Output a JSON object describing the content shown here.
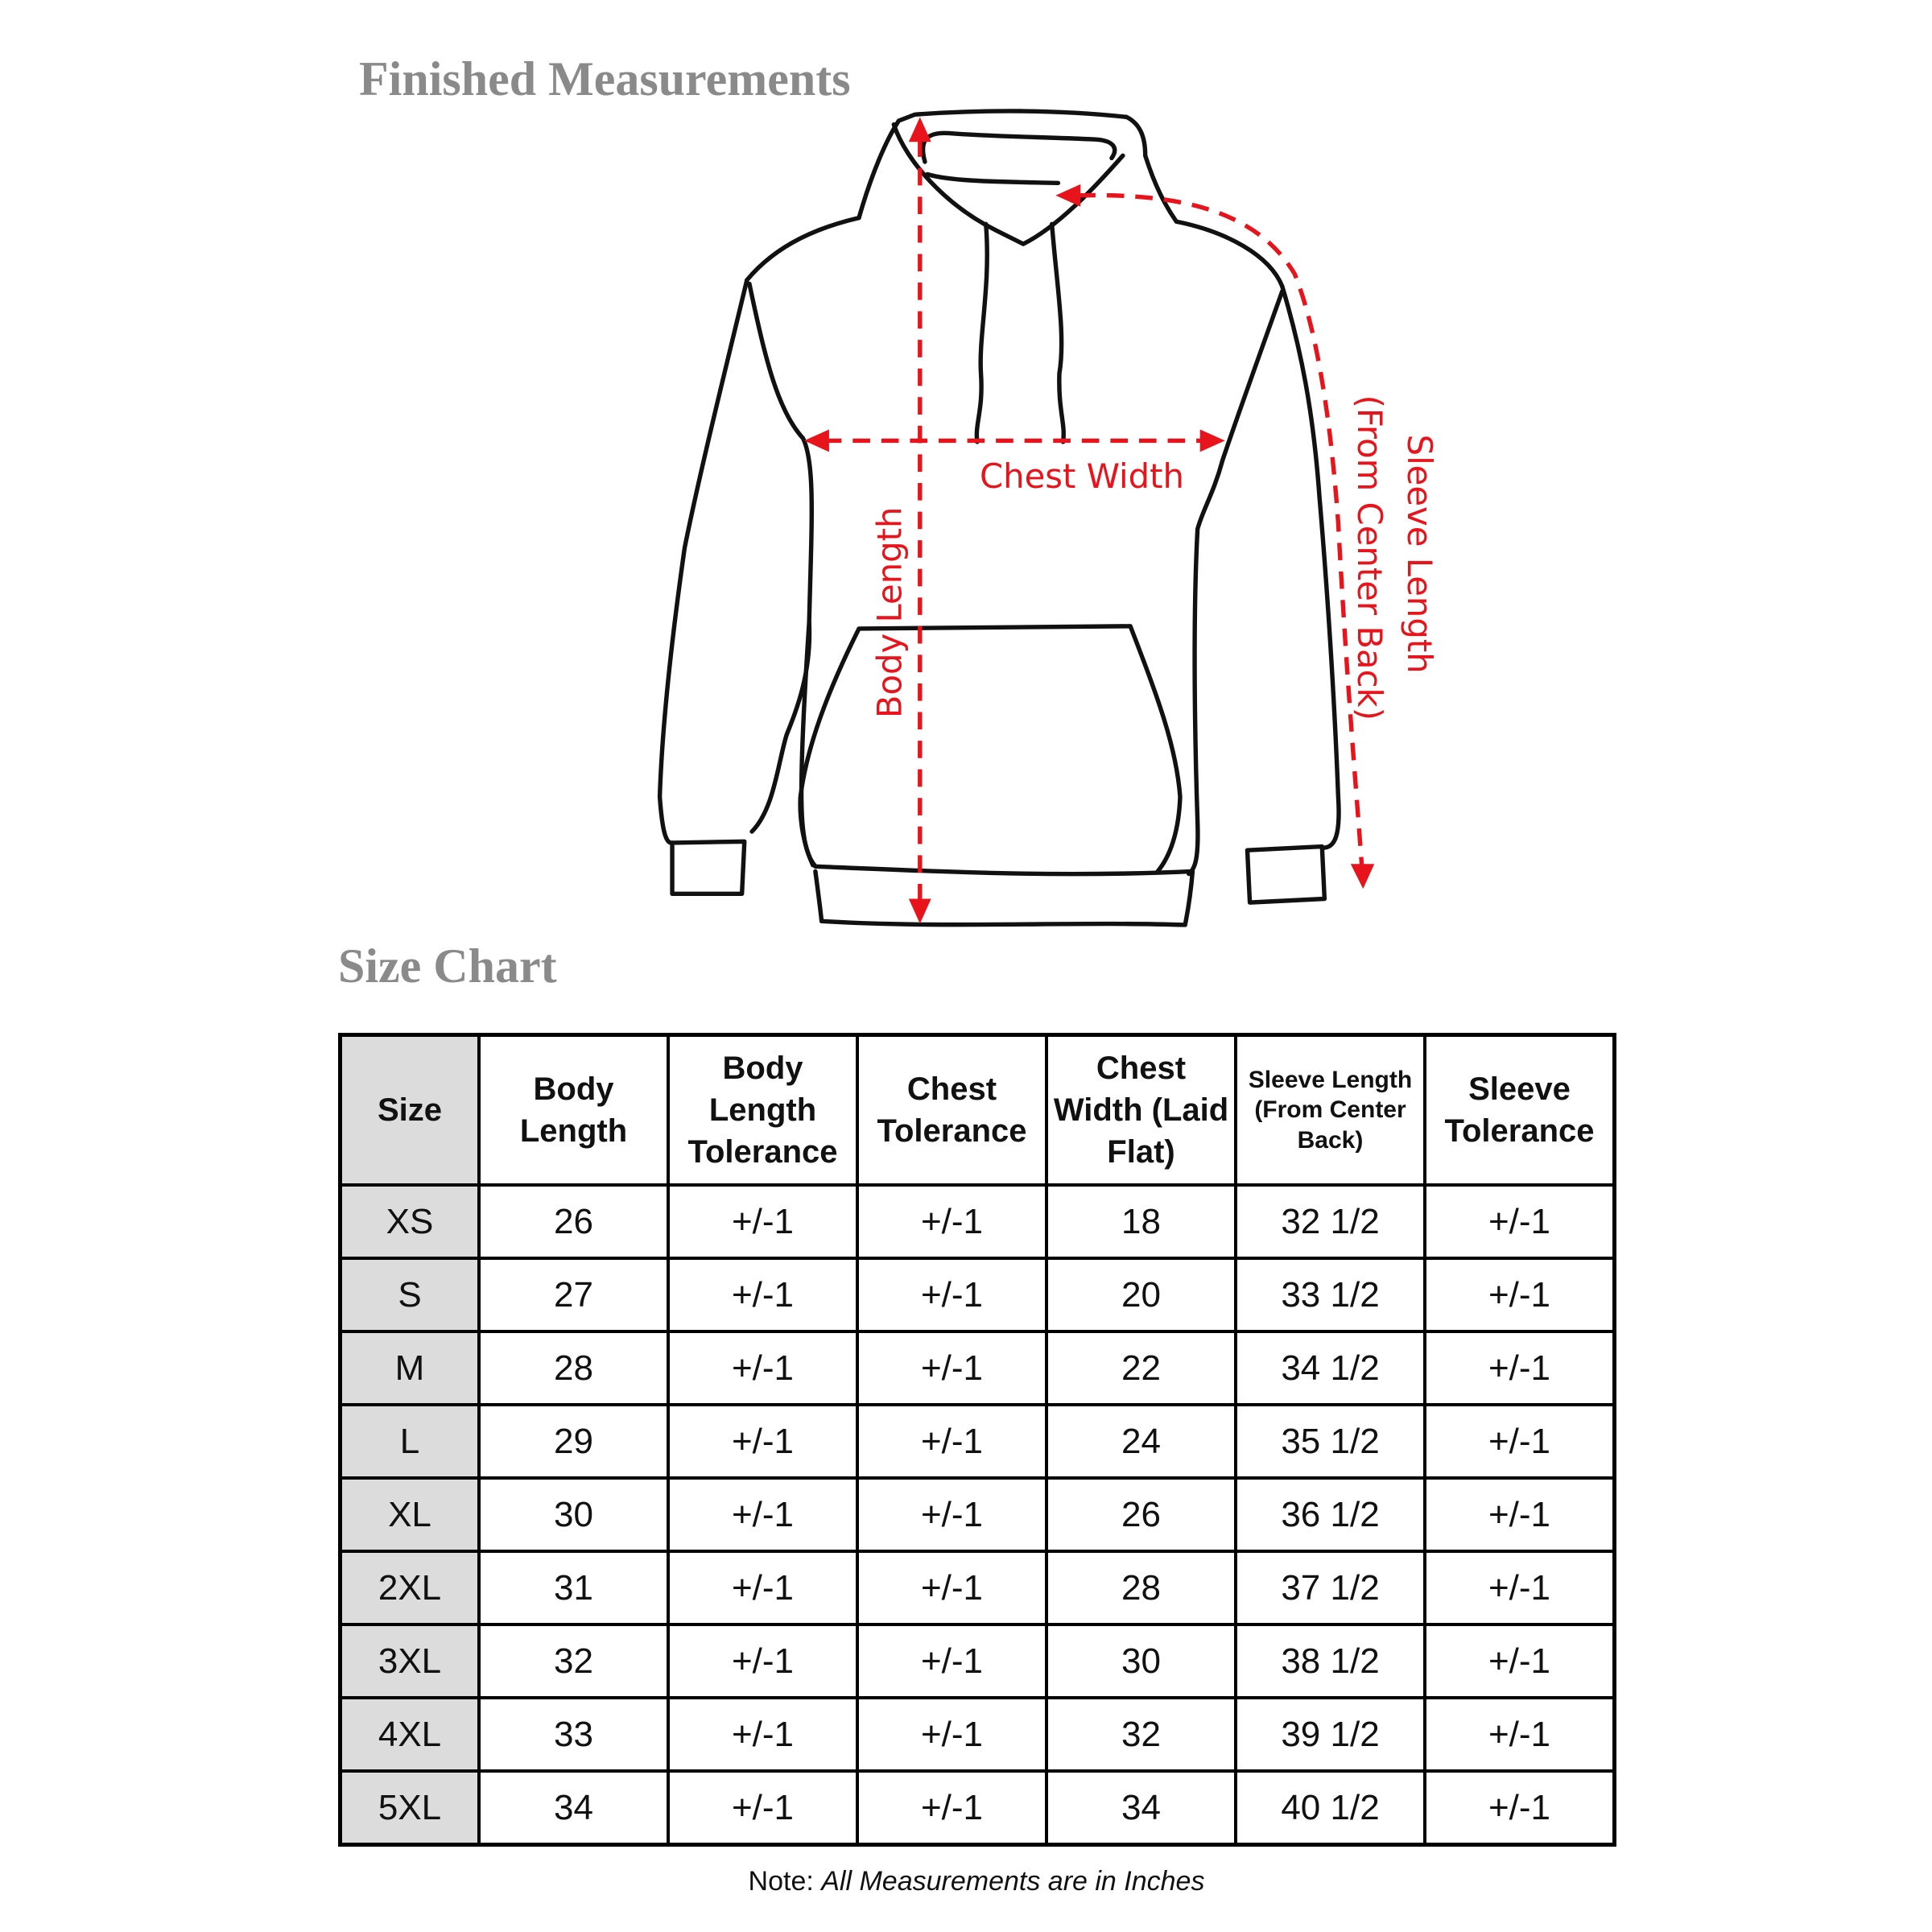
{
  "titles": {
    "finished": "Finished Measurements",
    "size_chart": "Size Chart"
  },
  "diagram": {
    "chest": "Chest Width",
    "body": "Body Length",
    "sleeve": "Sleeve Length",
    "sleeve_sub": "(From Center Back)",
    "accent_color": "#e8141b"
  },
  "table": {
    "headers": [
      "Size",
      "Body Length",
      "Body Length Tolerance",
      "Chest Tolerance",
      "Chest Width (Laid Flat)",
      "Sleeve Length (From Center Back)",
      "Sleeve Tolerance"
    ],
    "rows": [
      [
        "XS",
        "26",
        "+/-1",
        "+/-1",
        "18",
        "32 1/2",
        "+/-1"
      ],
      [
        "S",
        "27",
        "+/-1",
        "+/-1",
        "20",
        "33 1/2",
        "+/-1"
      ],
      [
        "M",
        "28",
        "+/-1",
        "+/-1",
        "22",
        "34 1/2",
        "+/-1"
      ],
      [
        "L",
        "29",
        "+/-1",
        "+/-1",
        "24",
        "35 1/2",
        "+/-1"
      ],
      [
        "XL",
        "30",
        "+/-1",
        "+/-1",
        "26",
        "36 1/2",
        "+/-1"
      ],
      [
        "2XL",
        "31",
        "+/-1",
        "+/-1",
        "28",
        "37 1/2",
        "+/-1"
      ],
      [
        "3XL",
        "32",
        "+/-1",
        "+/-1",
        "30",
        "38 1/2",
        "+/-1"
      ],
      [
        "4XL",
        "33",
        "+/-1",
        "+/-1",
        "32",
        "39 1/2",
        "+/-1"
      ],
      [
        "5XL",
        "34",
        "+/-1",
        "+/-1",
        "34",
        "40 1/2",
        "+/-1"
      ]
    ]
  },
  "note": {
    "label": "Note:",
    "text": "All Measurements are in Inches"
  }
}
